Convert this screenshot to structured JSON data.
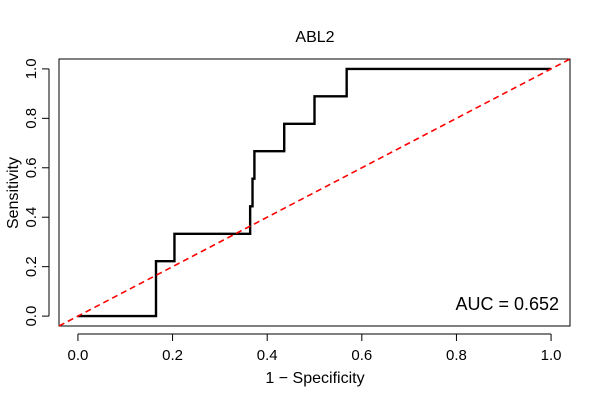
{
  "chart_data": {
    "type": "line",
    "title": "ABL2",
    "xlabel": "1 − Specificity",
    "ylabel": "Sensitivity",
    "xlim": [
      -0.04,
      1.04
    ],
    "ylim": [
      -0.04,
      1.04
    ],
    "x_ticks": [
      0.0,
      0.2,
      0.4,
      0.6,
      0.8,
      1.0
    ],
    "x_tick_labels": [
      "0.0",
      "0.2",
      "0.4",
      "0.6",
      "0.8",
      "1.0"
    ],
    "y_ticks": [
      0.0,
      0.2,
      0.4,
      0.6,
      0.8,
      1.0
    ],
    "y_tick_labels": [
      "0.0",
      "0.2",
      "0.4",
      "0.6",
      "0.8",
      "1.0"
    ],
    "grid": false,
    "annotation": "AUC = 0.652",
    "series": [
      {
        "style": "solid",
        "color": "#000000",
        "points": [
          [
            0.0,
            0.0
          ],
          [
            0.165,
            0.0
          ],
          [
            0.165,
            0.222
          ],
          [
            0.204,
            0.222
          ],
          [
            0.204,
            0.333
          ],
          [
            0.364,
            0.333
          ],
          [
            0.364,
            0.444
          ],
          [
            0.369,
            0.444
          ],
          [
            0.369,
            0.556
          ],
          [
            0.373,
            0.556
          ],
          [
            0.373,
            0.667
          ],
          [
            0.436,
            0.667
          ],
          [
            0.436,
            0.778
          ],
          [
            0.5,
            0.778
          ],
          [
            0.5,
            0.889
          ],
          [
            0.568,
            0.889
          ],
          [
            0.568,
            1.0
          ],
          [
            1.0,
            1.0
          ]
        ]
      },
      {
        "style": "dashed",
        "color": "#ff0000",
        "points": [
          [
            -0.04,
            -0.04
          ],
          [
            1.04,
            1.04
          ]
        ]
      }
    ]
  }
}
